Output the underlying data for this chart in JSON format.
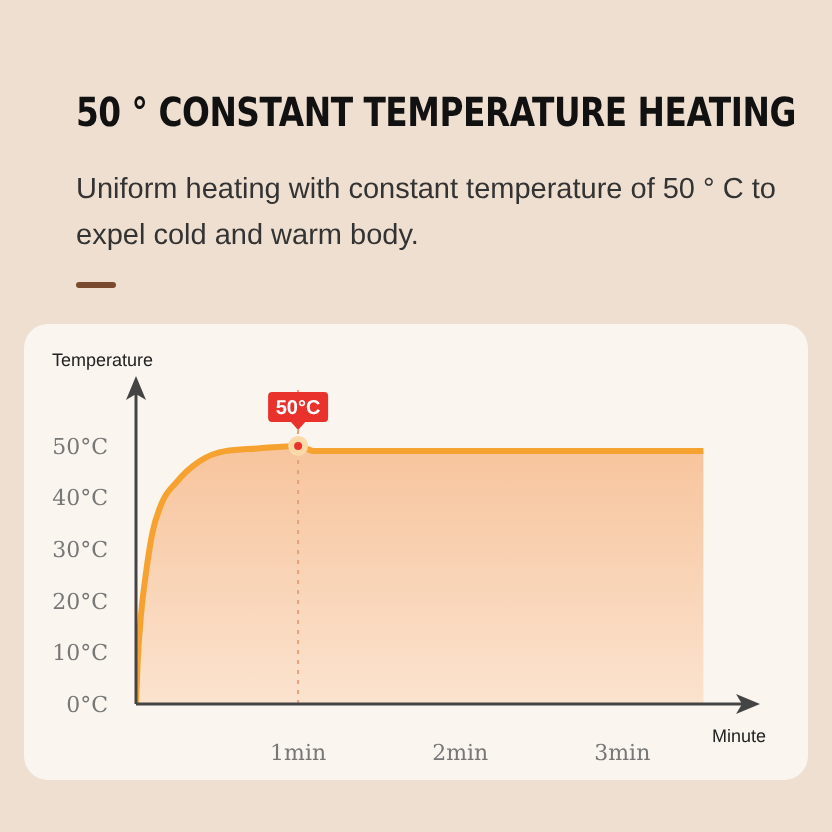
{
  "chart_data": {
    "type": "area",
    "title": "50 ° CONSTANT TEMPERATURE HEATING",
    "subtitle": "Uniform heating with constant temperature of 50 ° C to expel cold and warm body.",
    "xlabel": "Minute",
    "ylabel": "Temperature",
    "x": [
      0,
      0.01,
      0.03,
      0.06,
      0.1,
      0.16,
      0.25,
      0.39,
      0.55,
      0.75,
      1,
      1.1,
      3.5
    ],
    "series": [
      {
        "color": "#f5a230",
        "values": [
          0,
          8,
          17,
          25,
          33,
          39,
          43,
          47,
          49,
          49.5,
          50,
          49,
          49
        ]
      }
    ],
    "xlim": [
      0,
      3.8
    ],
    "xticks": [
      {
        "value": 1,
        "label": "1min"
      },
      {
        "value": 2,
        "label": "2min"
      },
      {
        "value": 3,
        "label": "3min"
      }
    ],
    "ylim": [
      0,
      62
    ],
    "yticks": [
      {
        "value": 0,
        "label": "0°C"
      },
      {
        "value": 10,
        "label": "10°C"
      },
      {
        "value": 20,
        "label": "20°C"
      },
      {
        "value": 30,
        "label": "30°C"
      },
      {
        "value": 40,
        "label": "40°C"
      },
      {
        "value": 50,
        "label": "50°C"
      }
    ],
    "ref_lines": [
      {
        "axis": "x",
        "value": 1,
        "color": "#e3a27a",
        "line_style": "dotted"
      }
    ],
    "annotations": [
      {
        "text": "50°C",
        "x": 1,
        "y": 50
      }
    ]
  }
}
